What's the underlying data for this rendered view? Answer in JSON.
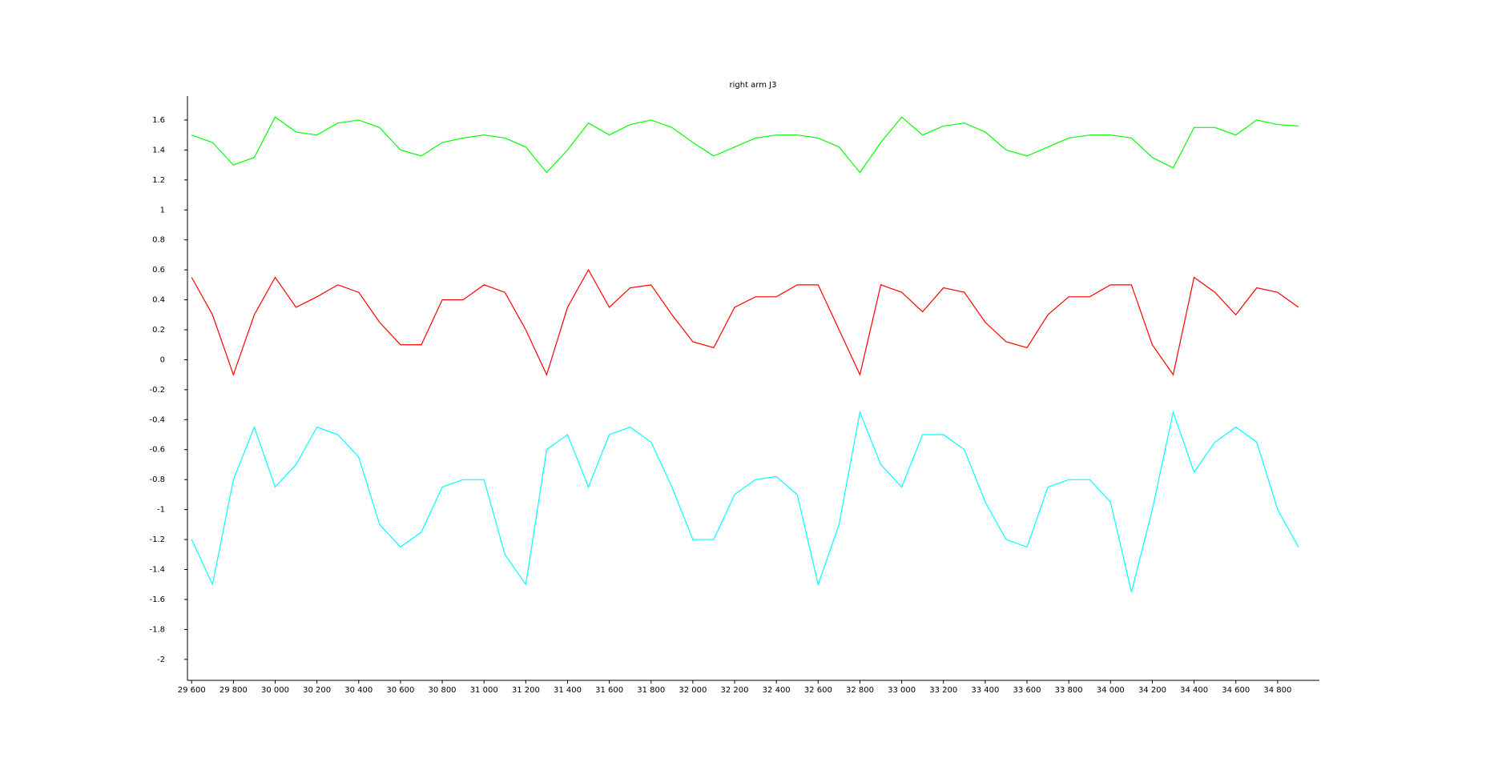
{
  "chart_data": {
    "type": "line",
    "title": "right arm J3",
    "x": [
      29600,
      29700,
      29800,
      29900,
      30000,
      30100,
      30200,
      30300,
      30400,
      30500,
      30600,
      30700,
      30800,
      30900,
      31000,
      31100,
      31200,
      31300,
      31400,
      31500,
      31600,
      31700,
      31800,
      31900,
      32000,
      32100,
      32200,
      32300,
      32400,
      32500,
      32600,
      32700,
      32800,
      32900,
      33000,
      33100,
      33200,
      33300,
      33400,
      33500,
      33600,
      33700,
      33800,
      33900,
      34000,
      34100,
      34200,
      34300,
      34400,
      34500,
      34600,
      34700,
      34800,
      34900
    ],
    "series": [
      {
        "color": "#00ff00",
        "values": [
          1.5,
          1.45,
          1.3,
          1.35,
          1.62,
          1.52,
          1.5,
          1.58,
          1.6,
          1.55,
          1.4,
          1.36,
          1.45,
          1.48,
          1.5,
          1.48,
          1.42,
          1.25,
          1.4,
          1.58,
          1.5,
          1.57,
          1.6,
          1.55,
          1.45,
          1.36,
          1.42,
          1.48,
          1.5,
          1.5,
          1.48,
          1.42,
          1.25,
          1.45,
          1.62,
          1.5,
          1.56,
          1.58,
          1.52,
          1.4,
          1.36,
          1.42,
          1.48,
          1.5,
          1.5,
          1.48,
          1.35,
          1.28,
          1.55,
          1.55,
          1.5,
          1.6,
          1.57,
          1.56
        ]
      },
      {
        "color": "#ff0000",
        "values": [
          0.55,
          0.3,
          -0.1,
          0.3,
          0.55,
          0.35,
          0.42,
          0.5,
          0.45,
          0.25,
          0.1,
          0.1,
          0.4,
          0.4,
          0.5,
          0.45,
          0.2,
          -0.1,
          0.35,
          0.6,
          0.35,
          0.48,
          0.5,
          0.3,
          0.12,
          0.08,
          0.35,
          0.42,
          0.42,
          0.5,
          0.5,
          0.2,
          -0.1,
          0.5,
          0.45,
          0.32,
          0.48,
          0.45,
          0.25,
          0.12,
          0.08,
          0.3,
          0.42,
          0.42,
          0.5,
          0.5,
          0.1,
          -0.1,
          0.55,
          0.45,
          0.3,
          0.48,
          0.45,
          0.35
        ]
      },
      {
        "color": "#00ffff",
        "values": [
          -1.2,
          -1.5,
          -0.8,
          -0.45,
          -0.85,
          -0.7,
          -0.45,
          -0.5,
          -0.65,
          -1.1,
          -1.25,
          -1.15,
          -0.85,
          -0.8,
          -0.8,
          -1.3,
          -1.5,
          -0.6,
          -0.5,
          -0.85,
          -0.5,
          -0.45,
          -0.55,
          -0.85,
          -1.2,
          -1.2,
          -0.9,
          -0.8,
          -0.78,
          -0.9,
          -1.5,
          -1.1,
          -0.35,
          -0.7,
          -0.85,
          -0.5,
          -0.5,
          -0.6,
          -0.95,
          -1.2,
          -1.25,
          -0.85,
          -0.8,
          -0.8,
          -0.95,
          -1.55,
          -1.0,
          -0.35,
          -0.75,
          -0.55,
          -0.45,
          -0.55,
          -1.0,
          -1.25
        ]
      }
    ],
    "xlim": [
      29580,
      35000
    ],
    "xticks": [
      {
        "value": 29600,
        "label": "29 600"
      },
      {
        "value": 29800,
        "label": "29 800"
      },
      {
        "value": 30000,
        "label": "30 000"
      },
      {
        "value": 30200,
        "label": "30 200"
      },
      {
        "value": 30400,
        "label": "30 400"
      },
      {
        "value": 30600,
        "label": "30 600"
      },
      {
        "value": 30800,
        "label": "30 800"
      },
      {
        "value": 31000,
        "label": "31 000"
      },
      {
        "value": 31200,
        "label": "31 200"
      },
      {
        "value": 31400,
        "label": "31 400"
      },
      {
        "value": 31600,
        "label": "31 600"
      },
      {
        "value": 31800,
        "label": "31 800"
      },
      {
        "value": 32000,
        "label": "32 000"
      },
      {
        "value": 32200,
        "label": "32 200"
      },
      {
        "value": 32400,
        "label": "32 400"
      },
      {
        "value": 32600,
        "label": "32 600"
      },
      {
        "value": 32800,
        "label": "32 800"
      },
      {
        "value": 33000,
        "label": "33 000"
      },
      {
        "value": 33200,
        "label": "33 200"
      },
      {
        "value": 33400,
        "label": "33 400"
      },
      {
        "value": 33600,
        "label": "33 600"
      },
      {
        "value": 33800,
        "label": "33 800"
      },
      {
        "value": 34000,
        "label": "34 000"
      },
      {
        "value": 34200,
        "label": "34 200"
      },
      {
        "value": 34400,
        "label": "34 400"
      },
      {
        "value": 34600,
        "label": "34 600"
      },
      {
        "value": 34800,
        "label": "34 800"
      }
    ],
    "ylim": [
      -2.14,
      1.76
    ],
    "yticks": [
      -2,
      -1.8,
      -1.6,
      -1.4,
      -1.2,
      -1,
      -0.8,
      -0.6,
      -0.4,
      -0.2,
      0,
      0.2,
      0.4,
      0.6,
      0.8,
      1,
      1.2,
      1.4,
      1.6
    ],
    "grid": false
  }
}
